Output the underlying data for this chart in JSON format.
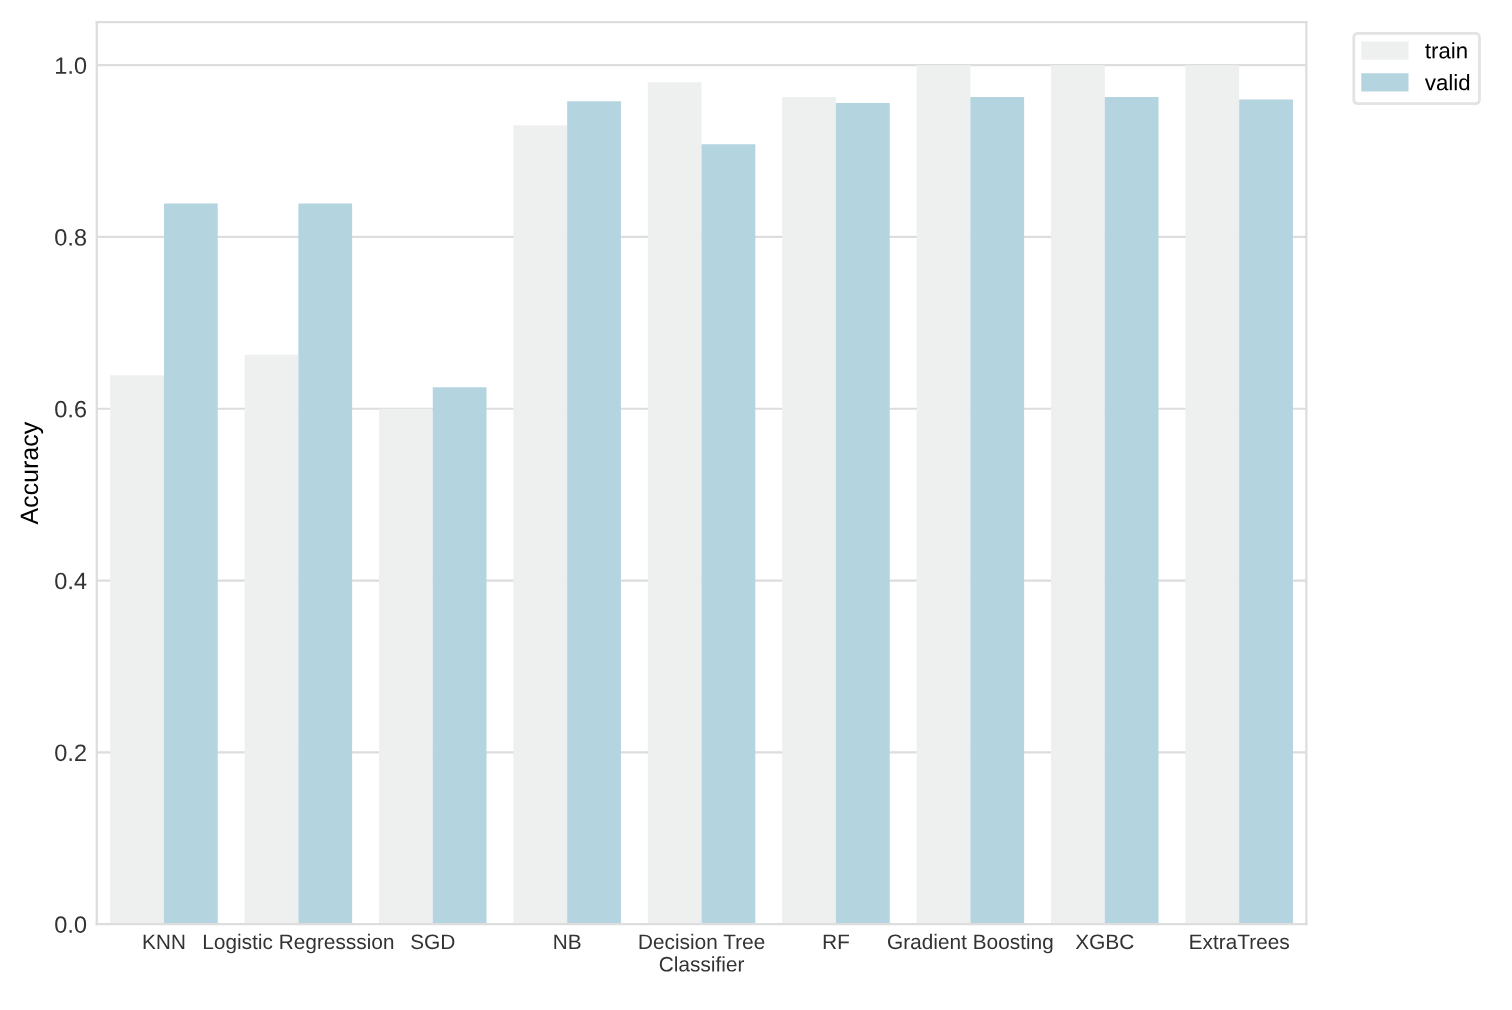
{
  "chart_data": {
    "type": "bar",
    "ylabel": "Accuracy",
    "categories": [
      "KNN",
      "Logistic Regresssion",
      "SGD",
      "NB",
      "Decision Tree\nClassifier",
      "RF",
      "Gradient Boosting",
      "XGBC",
      "ExtraTrees"
    ],
    "series": [
      {
        "name": "train",
        "color": "#eeefef",
        "values": [
          0.639,
          0.663,
          0.6,
          0.93,
          0.98,
          0.963,
          1.0,
          1.0,
          1.0
        ]
      },
      {
        "name": "valid",
        "color": "#b4d4df",
        "values": [
          0.839,
          0.839,
          0.625,
          0.958,
          0.908,
          0.956,
          0.963,
          0.963,
          0.96
        ]
      }
    ],
    "ylim": [
      0,
      1.05
    ],
    "yticks": [
      {
        "value": 0,
        "label": "0.0"
      },
      0.2,
      0.4,
      0.6,
      0.8,
      {
        "value": 1,
        "label": "1.0"
      }
    ],
    "grid": "y",
    "legend": "top right"
  }
}
